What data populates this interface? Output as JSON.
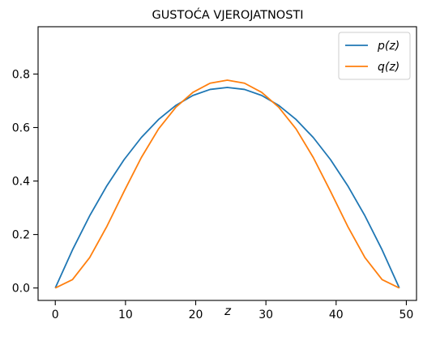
{
  "chart_data": {
    "type": "line",
    "title": "GUSTOĆA VJEROJATNOSTI",
    "xlabel": "z",
    "ylabel": "",
    "xlim": [
      -2.45,
      51.45
    ],
    "ylim": [
      -0.0465,
      0.977
    ],
    "xticks": [
      0,
      10,
      20,
      30,
      40,
      50
    ],
    "yticks": [
      0.0,
      0.2,
      0.4,
      0.6,
      0.8
    ],
    "ytick_labels": [
      "0.0",
      "0.2",
      "0.4",
      "0.6",
      "0.8"
    ],
    "grid": false,
    "legend": "top-right",
    "x": [
      0,
      2.45,
      4.9,
      7.35,
      9.8,
      12.25,
      14.7,
      17.15,
      19.6,
      22.05,
      24.5,
      26.95,
      29.4,
      31.85,
      34.3,
      36.75,
      39.2,
      41.65,
      44.1,
      46.55,
      49
    ],
    "series": [
      {
        "name": "p(z)",
        "color": "#1f77b4",
        "values": [
          0.0,
          0.1425,
          0.27,
          0.3825,
          0.48,
          0.5625,
          0.63,
          0.6825,
          0.72,
          0.7425,
          0.75,
          0.7425,
          0.72,
          0.6825,
          0.63,
          0.5625,
          0.48,
          0.3825,
          0.27,
          0.1425,
          0.0
        ]
      },
      {
        "name": "q(z)",
        "color": "#ff7f0e",
        "values": [
          0.0,
          0.0312,
          0.1139,
          0.2305,
          0.3613,
          0.4875,
          0.5945,
          0.6753,
          0.7315,
          0.7658,
          0.777,
          0.7658,
          0.7315,
          0.6753,
          0.5945,
          0.4875,
          0.3613,
          0.2305,
          0.1139,
          0.0312,
          0.0
        ]
      }
    ]
  }
}
